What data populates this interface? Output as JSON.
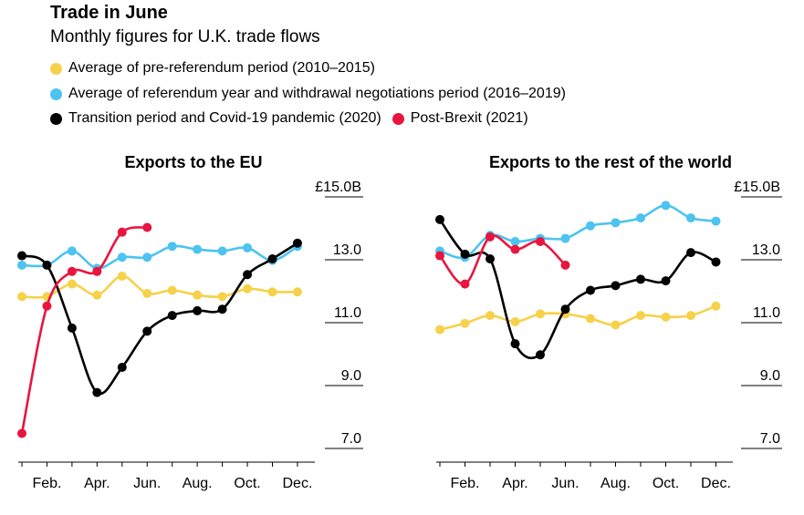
{
  "header": {
    "title": "Trade in June",
    "subtitle": "Monthly figures for U.K. trade flows"
  },
  "legend": [
    {
      "label": "Average of pre-referendum period  (2010–2015)",
      "color": "#f6d14a"
    },
    {
      "label": "Average of referendum year and withdrawal negotiations period (2016–2019)",
      "color": "#4cc3f0"
    },
    {
      "label": "Transition period and Covid-19 pandemic (2020)",
      "color": "#000000"
    },
    {
      "label": "Post-Brexit (2021)",
      "color": "#e8153f"
    }
  ],
  "chart_data": [
    {
      "type": "line",
      "title": "Exports to the EU",
      "x_tick_labels": [
        "Feb.",
        "Apr.",
        "Jun.",
        "Aug.",
        "Oct.",
        "Dec."
      ],
      "x_tick_months": [
        2,
        4,
        6,
        8,
        10,
        12
      ],
      "y_tick_labels": [
        "£15.0B",
        "13.0",
        "11.0",
        "9.0",
        "7.0"
      ],
      "y_ticks": [
        15,
        13,
        11,
        9,
        7
      ],
      "ylim": [
        6.5,
        15.5
      ],
      "series": [
        {
          "name": "Average of pre-referendum period  (2010–2015)",
          "color": "#f6d14a",
          "x": [
            1,
            2,
            3,
            4,
            5,
            6,
            7,
            8,
            9,
            10,
            11,
            12
          ],
          "values": [
            11.8,
            11.8,
            12.2,
            11.85,
            12.45,
            11.9,
            12.0,
            11.85,
            11.8,
            12.05,
            11.95,
            11.95
          ]
        },
        {
          "name": "Average of referendum year and withdrawal negotiations period (2016–2019)",
          "color": "#4cc3f0",
          "x": [
            1,
            2,
            3,
            4,
            5,
            6,
            7,
            8,
            9,
            10,
            11,
            12
          ],
          "values": [
            12.8,
            12.8,
            13.25,
            12.7,
            13.05,
            13.05,
            13.4,
            13.3,
            13.25,
            13.35,
            12.95,
            13.4
          ]
        },
        {
          "name": "Transition period and Covid-19 pandemic (2020)",
          "color": "#000000",
          "x": [
            1,
            2,
            3,
            4,
            5,
            6,
            7,
            8,
            9,
            10,
            11,
            12
          ],
          "values": [
            13.1,
            12.8,
            10.8,
            8.75,
            9.55,
            10.7,
            11.2,
            11.35,
            11.4,
            12.5,
            13.0,
            13.5
          ]
        },
        {
          "name": "Post-Brexit (2021)",
          "color": "#e8153f",
          "x": [
            1,
            2,
            3,
            4,
            5,
            6
          ],
          "values": [
            7.45,
            11.5,
            12.6,
            12.6,
            13.85,
            14.0
          ]
        }
      ]
    },
    {
      "type": "line",
      "title": "Exports to the rest of the world",
      "x_tick_labels": [
        "Feb.",
        "Apr.",
        "Jun.",
        "Aug.",
        "Oct.",
        "Dec."
      ],
      "x_tick_months": [
        2,
        4,
        6,
        8,
        10,
        12
      ],
      "y_tick_labels": [
        "£15.0B",
        "13.0",
        "11.0",
        "9.0",
        "7.0"
      ],
      "y_ticks": [
        15,
        13,
        11,
        9,
        7
      ],
      "ylim": [
        6.5,
        15.5
      ],
      "series": [
        {
          "name": "Average of pre-referendum period  (2010–2015)",
          "color": "#f6d14a",
          "x": [
            1,
            2,
            3,
            4,
            5,
            6,
            7,
            8,
            9,
            10,
            11,
            12
          ],
          "values": [
            10.75,
            10.95,
            11.2,
            11.0,
            11.25,
            11.25,
            11.1,
            10.9,
            11.2,
            11.15,
            11.2,
            11.5
          ]
        },
        {
          "name": "Average of referendum year and withdrawal negotiations period (2016–2019)",
          "color": "#4cc3f0",
          "x": [
            1,
            2,
            3,
            4,
            5,
            6,
            7,
            8,
            9,
            10,
            11,
            12
          ],
          "values": [
            13.25,
            13.05,
            13.75,
            13.55,
            13.65,
            13.65,
            14.05,
            14.15,
            14.3,
            14.7,
            14.3,
            14.2
          ]
        },
        {
          "name": "Transition period and Covid-19 pandemic (2020)",
          "color": "#000000",
          "x": [
            1,
            2,
            3,
            4,
            5,
            6,
            7,
            8,
            9,
            10,
            11,
            12
          ],
          "values": [
            14.25,
            13.15,
            13.0,
            10.3,
            9.95,
            11.4,
            12.0,
            12.15,
            12.35,
            12.3,
            13.2,
            12.9
          ]
        },
        {
          "name": "Post-Brexit (2021)",
          "color": "#e8153f",
          "x": [
            1,
            2,
            3,
            4,
            5,
            6
          ],
          "values": [
            13.1,
            12.2,
            13.7,
            13.3,
            13.55,
            12.8
          ]
        }
      ]
    }
  ]
}
